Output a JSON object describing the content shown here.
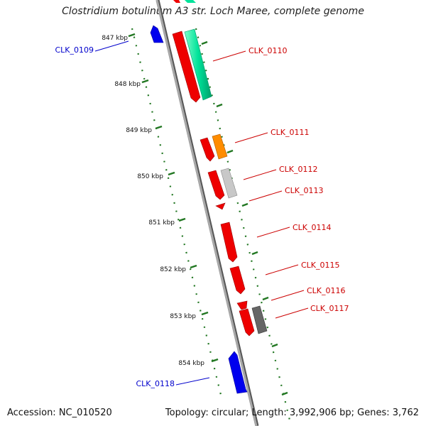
{
  "title": "Clostridium botulinum A3 str. Loch Maree, complete genome",
  "footer": {
    "accession": "Accession: NC_010520",
    "topology": "Topology: circular; Length: 3,992,906 bp; Genes: 3,762"
  },
  "colors": {
    "forward_label": "#cc0000",
    "reverse_label": "#0000cc",
    "backbone": "#888888",
    "ticks": "#227722"
  },
  "scale_labels": [
    "847 kbp",
    "848 kbp",
    "849 kbp",
    "850 kbp",
    "851 kbp",
    "852 kbp",
    "853 kbp",
    "854 kbp"
  ],
  "gene_labels": [
    {
      "text": "CLK_0109",
      "strand": "reverse"
    },
    {
      "text": "CLK_0110",
      "strand": "forward"
    },
    {
      "text": "CLK_0111",
      "strand": "forward"
    },
    {
      "text": "CLK_0112",
      "strand": "forward"
    },
    {
      "text": "CLK_0113",
      "strand": "forward"
    },
    {
      "text": "CLK_0114",
      "strand": "forward"
    },
    {
      "text": "CLK_0115",
      "strand": "forward"
    },
    {
      "text": "CLK_0116",
      "strand": "forward"
    },
    {
      "text": "CLK_0117",
      "strand": "forward"
    },
    {
      "text": "CLK_0118",
      "strand": "reverse"
    }
  ],
  "features": [
    {
      "name": "CLK_0109",
      "strand": "reverse",
      "color": "#0000ee"
    },
    {
      "name": "CLK_0110-cds",
      "strand": "forward",
      "color": "#ee0000"
    },
    {
      "name": "CLK_0110-gene",
      "strand": "forward",
      "color": "#00e39a"
    },
    {
      "name": "CLK_0111-cds",
      "strand": "forward",
      "color": "#ee0000"
    },
    {
      "name": "CLK_0111-gene",
      "strand": "forward",
      "color": "#ff8c00"
    },
    {
      "name": "CLK_0112-cds",
      "strand": "forward",
      "color": "#ee0000"
    },
    {
      "name": "CLK_0112-gene",
      "strand": "forward",
      "color": "#c0c0c0"
    },
    {
      "name": "CLK_0113-cds",
      "strand": "forward",
      "color": "#ee0000"
    },
    {
      "name": "CLK_0114-cds",
      "strand": "forward",
      "color": "#ee0000"
    },
    {
      "name": "CLK_0115-cds",
      "strand": "forward",
      "color": "#ee0000"
    },
    {
      "name": "CLK_0116-cds",
      "strand": "forward",
      "color": "#ee0000"
    },
    {
      "name": "CLK_0117-cds",
      "strand": "forward",
      "color": "#ee0000"
    },
    {
      "name": "CLK_0117-gene",
      "strand": "forward",
      "color": "#666666"
    },
    {
      "name": "CLK_0118",
      "strand": "reverse",
      "color": "#0000ee"
    }
  ]
}
